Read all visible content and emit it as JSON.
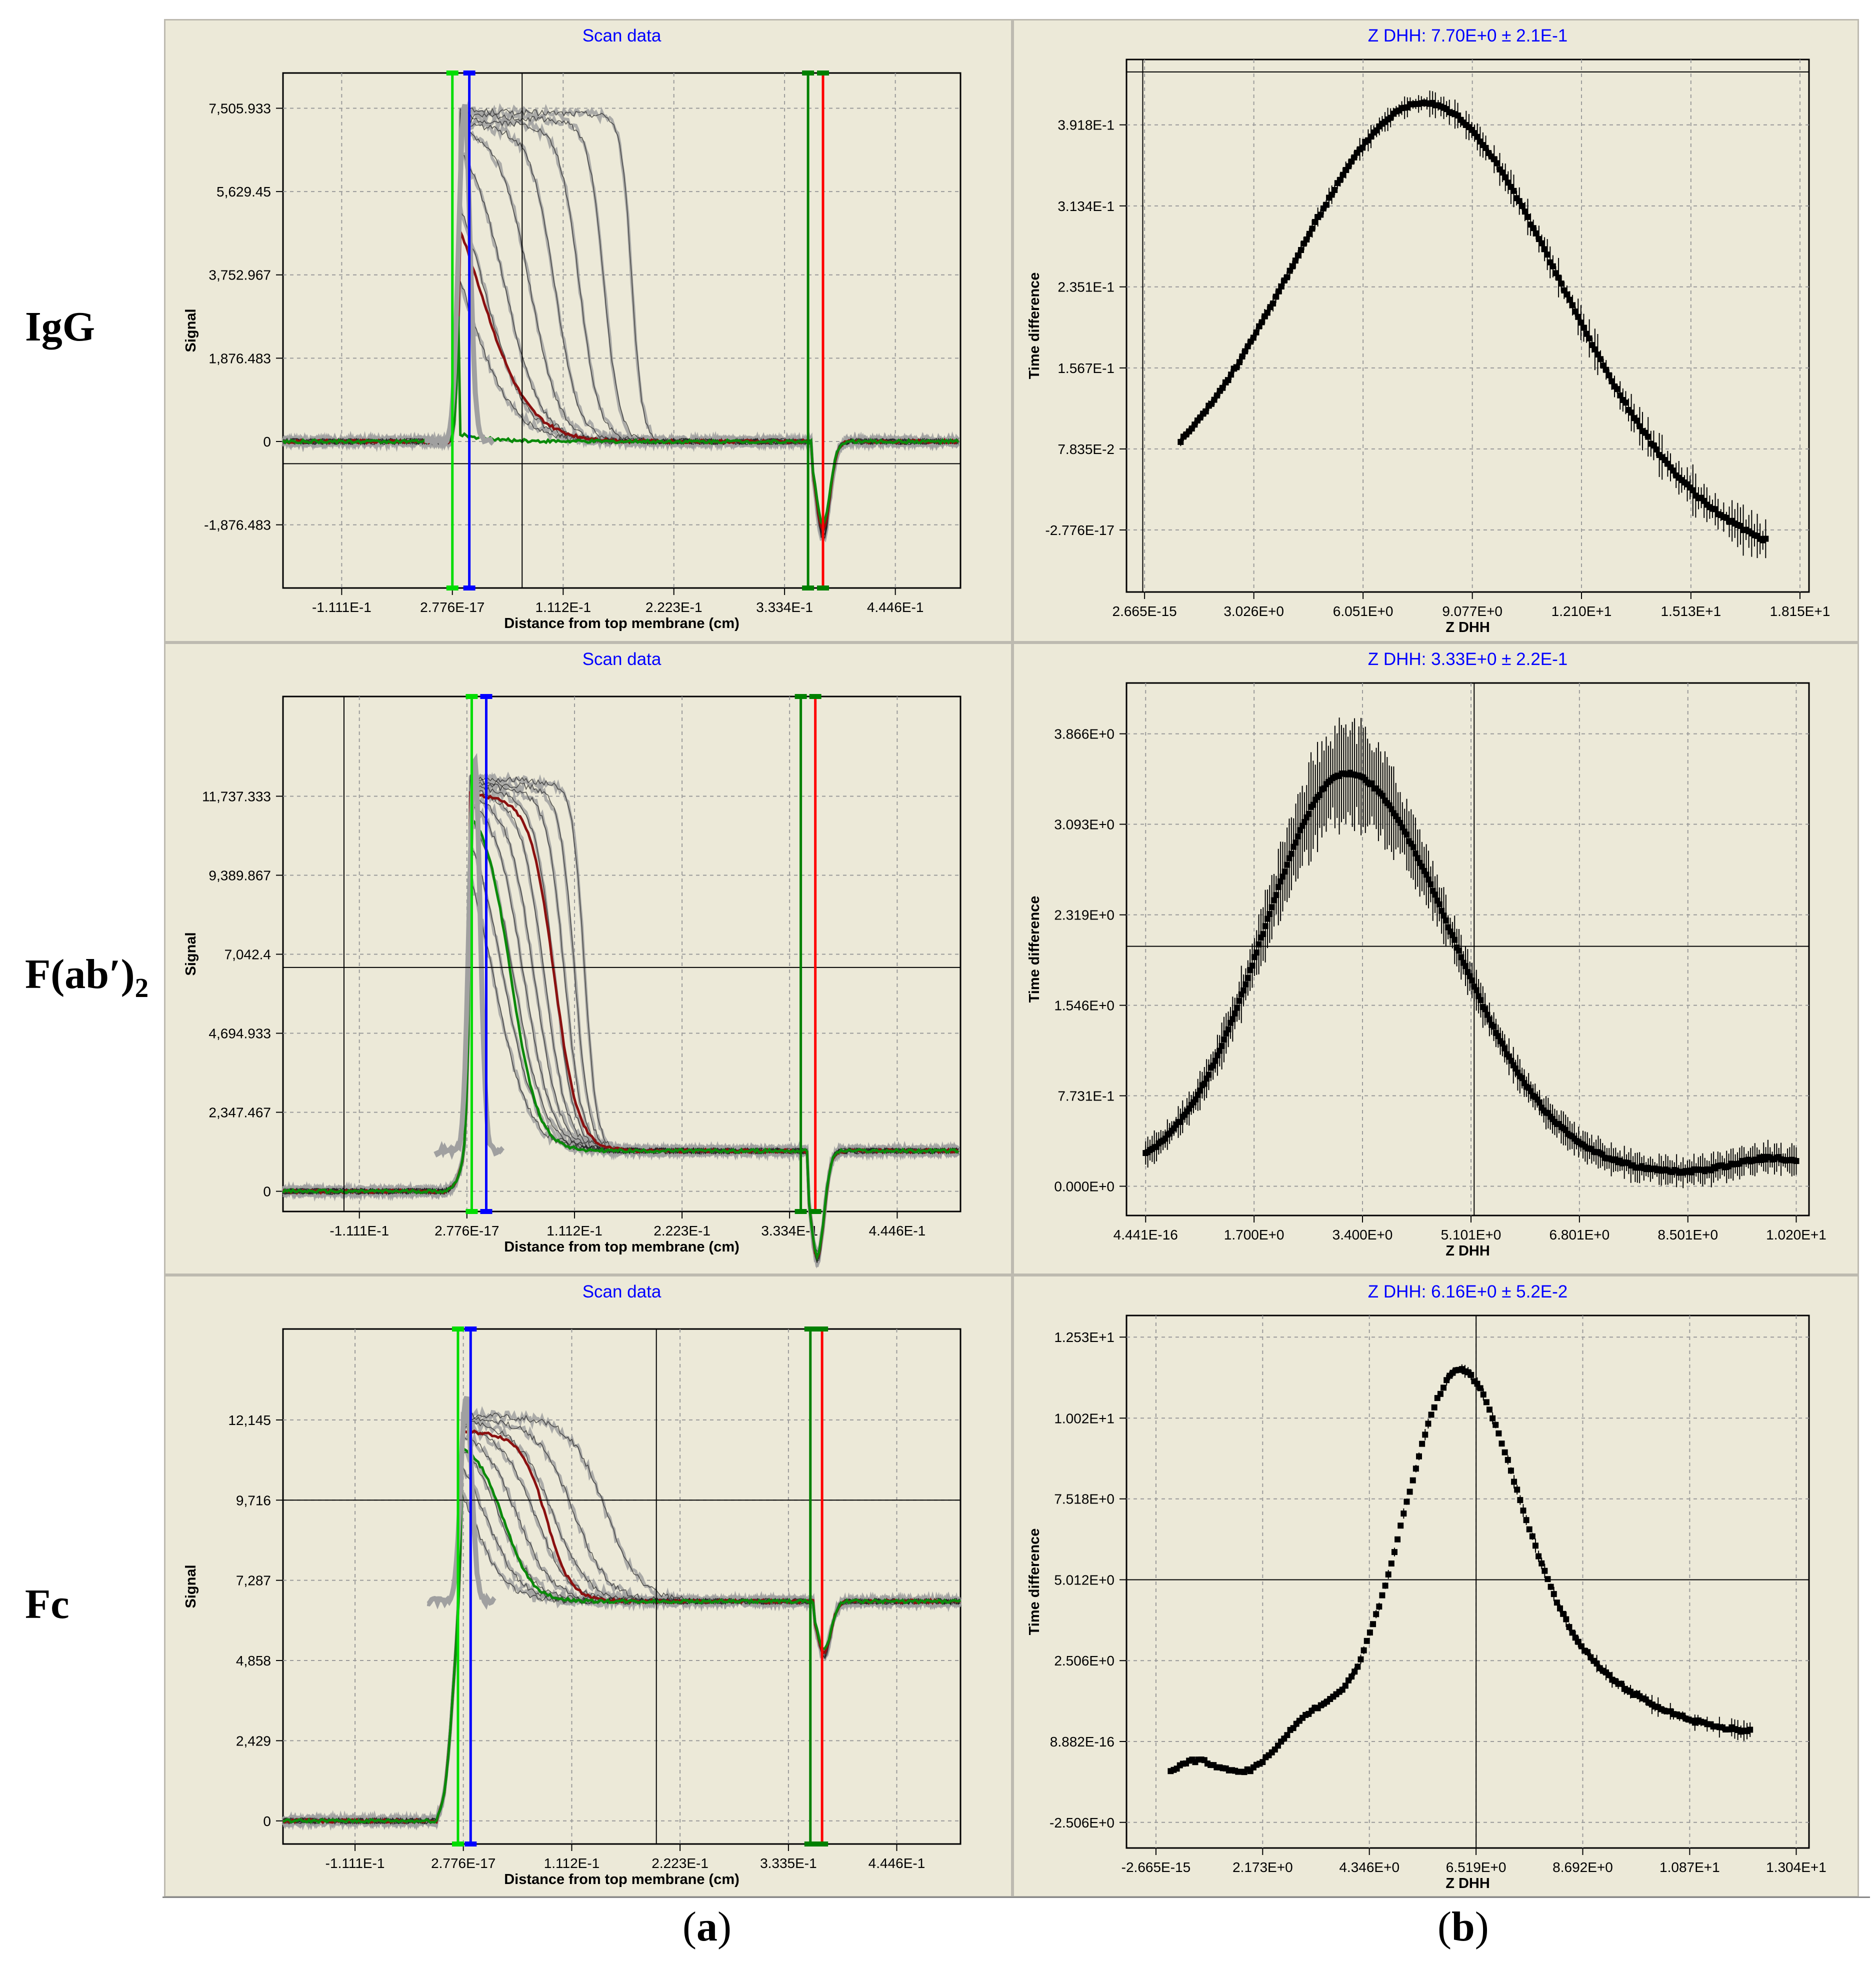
{
  "row_labels": [
    "IgG",
    "F(ab′)",
    "Fc"
  ],
  "row_label_subscript": "2",
  "captions": {
    "a": "a",
    "b": "b"
  },
  "colors": {
    "panel_bg": "#ece9d8",
    "title": "#0000ff",
    "grid": "#9a9a9a",
    "scan_gray": "#a0a0a0",
    "scan_dark": "#1e1e1e",
    "green_line": "#008000",
    "red_line": "#ff0000",
    "lime_line": "#00dd00",
    "blue_line": "#0000ff",
    "trace_green": "#0a8a0a",
    "trace_red": "#8b1010"
  },
  "chart_data": [
    {
      "id": "a1",
      "type": "line",
      "title": "Scan data",
      "xlabel": "Distance from top membrane (cm)",
      "ylabel": "Signal",
      "xlim": [
        -0.17,
        0.51
      ],
      "ylim": [
        -3300,
        8300
      ],
      "xticks": [
        -0.1111,
        0.0,
        0.1112,
        0.2223,
        0.3334,
        0.4446
      ],
      "xtick_labels": [
        "-1.111E-1",
        "2.776E-17",
        "1.112E-1",
        "2.223E-1",
        "3.334E-1",
        "4.446E-1"
      ],
      "yticks": [
        -1876.483,
        0,
        1876.483,
        3752.967,
        5629.45,
        7505.933
      ],
      "ytick_labels": [
        "-1,876.483",
        "0",
        "1,876.483",
        "3,752.967",
        "5,629.45",
        "7,505.933"
      ],
      "crosshair": {
        "x": 0.07,
        "y": -500
      },
      "vlines": [
        {
          "x": 0.0,
          "color": "lime"
        },
        {
          "x": 0.017,
          "color": "blue"
        },
        {
          "x": 0.357,
          "color": "green"
        },
        {
          "x": 0.372,
          "color": "red"
        }
      ],
      "meniscus_x": 0.012,
      "base_x": 0.362,
      "baseline": 0,
      "meniscus_peak": 7600,
      "scans": [
        {
          "start": 7450,
          "mid": 0.48,
          "width": 0.015,
          "end": 0.005
        },
        {
          "start": 7350,
          "mid": 0.4,
          "width": 0.022,
          "end": 0.01
        },
        {
          "start": 7250,
          "mid": 0.33,
          "width": 0.028,
          "end": 0.015
        },
        {
          "start": 7150,
          "mid": 0.26,
          "width": 0.034,
          "end": 0.02
        },
        {
          "start": 7050,
          "mid": 0.19,
          "width": 0.042,
          "end": 0.03
        },
        {
          "start": 6950,
          "mid": 0.12,
          "width": 0.05,
          "end": 0.04
        },
        {
          "start": 6850,
          "mid": 0.06,
          "width": 0.06,
          "end": 0.05
        },
        {
          "start": 6700,
          "mid": 0.0,
          "width": 0.07,
          "end": 0.06
        }
      ],
      "highlights": [
        {
          "start": 6700,
          "mid": 0.05,
          "width": 0.07,
          "end": 0.05,
          "color": "red"
        },
        {
          "start": 6200,
          "mid": -0.3,
          "width": 0.08,
          "end": 0.0,
          "color": "green"
        }
      ]
    },
    {
      "id": "b1",
      "type": "scatter",
      "title": "Z DHH: 7.70E+0 ± 2.1E-1",
      "xlabel": "Z DHH",
      "ylabel": "Time difference",
      "xlim": [
        -0.5,
        18.4
      ],
      "ylim": [
        -0.06,
        0.455
      ],
      "xticks": [
        0.0,
        3.026,
        6.051,
        9.077,
        12.1,
        15.13,
        18.15
      ],
      "xtick_labels": [
        "2.665E-15",
        "3.026E+0",
        "6.051E+0",
        "9.077E+0",
        "1.210E+1",
        "1.513E+1",
        "1.815E+1"
      ],
      "yticks": [
        0.0,
        0.07835,
        0.1567,
        0.2351,
        0.3134,
        0.3918
      ],
      "ytick_labels": [
        "-2.776E-17",
        "7.835E-2",
        "1.567E-1",
        "2.351E-1",
        "3.134E-1",
        "3.918E-1"
      ],
      "crosshair": {
        "x": -0.05,
        "y": 0.443
      },
      "curve": {
        "kind": "gauss",
        "center": 7.8,
        "sigma": 3.7,
        "amp": 0.402,
        "baseline": 0.0,
        "shoulder": 0
      },
      "x_range": [
        1.0,
        17.2
      ],
      "n_points": 210,
      "error": [
        0.004,
        0.028
      ]
    },
    {
      "id": "a2",
      "type": "line",
      "title": "Scan data",
      "xlabel": "Distance from top membrane (cm)",
      "ylabel": "Signal",
      "xlim": [
        -0.19,
        0.51
      ],
      "ylim": [
        -600,
        14700
      ],
      "xticks": [
        -0.1111,
        0.0,
        0.1112,
        0.2223,
        0.3334,
        0.4446
      ],
      "xtick_labels": [
        "-1.111E-1",
        "2.776E-17",
        "1.112E-1",
        "2.223E-1",
        "3.334E-1",
        "4.446E-1"
      ],
      "yticks": [
        0,
        2347.467,
        4694.933,
        7042.4,
        9389.867,
        11737.333
      ],
      "ytick_labels": [
        "0",
        "2,347.467",
        "4,694.933",
        "7,042.4",
        "9,389.867",
        "11,737.333"
      ],
      "crosshair": {
        "x": -0.127,
        "y": 6650
      },
      "vlines": [
        {
          "x": 0.005,
          "color": "lime"
        },
        {
          "x": 0.02,
          "color": "blue"
        },
        {
          "x": 0.345,
          "color": "green"
        },
        {
          "x": 0.36,
          "color": "red"
        }
      ],
      "meniscus_x": 0.008,
      "base_x": 0.352,
      "baseline": 1200,
      "meniscus_peak": 12900,
      "scans": [
        {
          "start": 12300,
          "mid": 0.33,
          "width": 0.018,
          "end": 0.01
        },
        {
          "start": 12200,
          "mid": 0.3,
          "width": 0.022,
          "end": 0.015
        },
        {
          "start": 12100,
          "mid": 0.27,
          "width": 0.026,
          "end": 0.02
        },
        {
          "start": 12000,
          "mid": 0.24,
          "width": 0.03,
          "end": 0.025
        },
        {
          "start": 11900,
          "mid": 0.21,
          "width": 0.034,
          "end": 0.03
        },
        {
          "start": 11800,
          "mid": 0.18,
          "width": 0.038,
          "end": 0.035
        },
        {
          "start": 11700,
          "mid": 0.15,
          "width": 0.042,
          "end": 0.04
        },
        {
          "start": 11600,
          "mid": 0.12,
          "width": 0.046,
          "end": 0.045
        },
        {
          "start": 11500,
          "mid": 0.09,
          "width": 0.05,
          "end": 0.05
        },
        {
          "start": 11400,
          "mid": 0.06,
          "width": 0.054,
          "end": 0.055
        }
      ],
      "highlights": [
        {
          "start": 11800,
          "mid": 0.24,
          "width": 0.035,
          "end": 0.02,
          "color": "red"
        },
        {
          "start": 11600,
          "mid": 0.11,
          "width": 0.04,
          "end": 0.02,
          "color": "green"
        }
      ]
    },
    {
      "id": "b2",
      "type": "scatter",
      "title": "Z DHH: 3.33E+0 ± 2.2E-1",
      "xlabel": "Z DHH",
      "ylabel": "Time difference",
      "xlim": [
        -0.3,
        10.4
      ],
      "ylim": [
        -0.25,
        4.3
      ],
      "xticks": [
        0.0,
        1.7,
        3.4,
        5.101,
        6.801,
        8.501,
        10.2
      ],
      "xtick_labels": [
        "4.441E-16",
        "1.700E+0",
        "3.400E+0",
        "5.101E+0",
        "6.801E+0",
        "8.501E+0",
        "1.020E+1"
      ],
      "yticks": [
        0.0,
        0.7731,
        1.546,
        2.319,
        3.093,
        3.866
      ],
      "ytick_labels": [
        "0.000E+0",
        "7.731E-1",
        "1.546E+0",
        "2.319E+0",
        "3.093E+0",
        "3.866E+0"
      ],
      "crosshair": {
        "x": 5.15,
        "y": 2.05
      },
      "curve": {
        "kind": "gauss_plus",
        "center": 3.15,
        "sigma": 1.3,
        "amp": 3.43,
        "baseline": 0.1,
        "shoulder": 0.14
      },
      "x_range": [
        0.0,
        10.2
      ],
      "n_points": 300,
      "error": [
        0.05,
        0.45
      ]
    },
    {
      "id": "a3",
      "type": "line",
      "title": "Scan data",
      "xlabel": "Distance from top membrane (cm)",
      "ylabel": "Signal",
      "xlim": [
        -0.185,
        0.51
      ],
      "ylim": [
        -700,
        14900
      ],
      "xticks": [
        -0.1111,
        0.0,
        0.1112,
        0.2223,
        0.3335,
        0.4446
      ],
      "xtick_labels": [
        "-1.111E-1",
        "2.776E-17",
        "1.112E-1",
        "2.223E-1",
        "3.335E-1",
        "4.446E-1"
      ],
      "yticks": [
        0,
        2429,
        4858,
        7287,
        9716,
        12145
      ],
      "ytick_labels": [
        "0",
        "2,429",
        "4,858",
        "7,287",
        "9,716",
        "12,145"
      ],
      "crosshair": {
        "x": 0.198,
        "y": 9716
      },
      "vlines": [
        {
          "x": -0.0055,
          "color": "lime"
        },
        {
          "x": 0.0075,
          "color": "blue"
        },
        {
          "x": 0.356,
          "color": "green"
        },
        {
          "x": 0.368,
          "color": "red"
        }
      ],
      "meniscus_x": 0.003,
      "base_x": 0.36,
      "baseline": 6650,
      "meniscus_peak": 12800,
      "scans": [
        {
          "start": 12300,
          "mid": 0.4,
          "width": 0.05,
          "end": 0.01
        },
        {
          "start": 12200,
          "mid": 0.31,
          "width": 0.05,
          "end": 0.02
        },
        {
          "start": 12100,
          "mid": 0.25,
          "width": 0.05,
          "end": 0.03
        },
        {
          "start": 12000,
          "mid": 0.2,
          "width": 0.05,
          "end": 0.04
        },
        {
          "start": 11900,
          "mid": 0.15,
          "width": 0.05,
          "end": 0.05
        },
        {
          "start": 11800,
          "mid": 0.1,
          "width": 0.05,
          "end": 0.06
        },
        {
          "start": 11700,
          "mid": 0.06,
          "width": 0.05,
          "end": 0.07
        },
        {
          "start": 11600,
          "mid": 0.02,
          "width": 0.05,
          "end": 0.08
        }
      ],
      "highlights": [
        {
          "start": 11800,
          "mid": 0.23,
          "width": 0.035,
          "end": 0.02,
          "color": "red"
        },
        {
          "start": 11500,
          "mid": 0.11,
          "width": 0.04,
          "end": 0.02,
          "color": "green"
        }
      ]
    },
    {
      "id": "b3",
      "type": "scatter",
      "title": "Z DHH: 6.16E+0 ± 5.2E-2",
      "xlabel": "Z DHH",
      "ylabel": "Time difference",
      "xlim": [
        -0.6,
        13.3
      ],
      "ylim": [
        -3.3,
        13.2
      ],
      "xticks": [
        0.0,
        2.173,
        4.346,
        6.519,
        8.692,
        10.87,
        13.04
      ],
      "xtick_labels": [
        "-2.665E-15",
        "2.173E+0",
        "4.346E+0",
        "6.519E+0",
        "8.692E+0",
        "1.087E+1",
        "1.304E+1"
      ],
      "yticks": [
        -2.506,
        0.0,
        2.506,
        5.012,
        7.518,
        10.02,
        12.53
      ],
      "ytick_labels": [
        "-2.506E+0",
        "8.882E-16",
        "2.506E+0",
        "5.012E+0",
        "7.518E+0",
        "1.002E+1",
        "1.253E+1"
      ],
      "crosshair": {
        "x": 6.52,
        "y": 5.012
      },
      "curve": {
        "kind": "fc",
        "center": 6.2,
        "sigma": 1.2,
        "amp": 11.3,
        "baseline": 0.0,
        "shoulder": 0
      },
      "x_range": [
        0.3,
        12.1
      ],
      "n_points": 190,
      "error": [
        0.05,
        0.35
      ]
    }
  ]
}
